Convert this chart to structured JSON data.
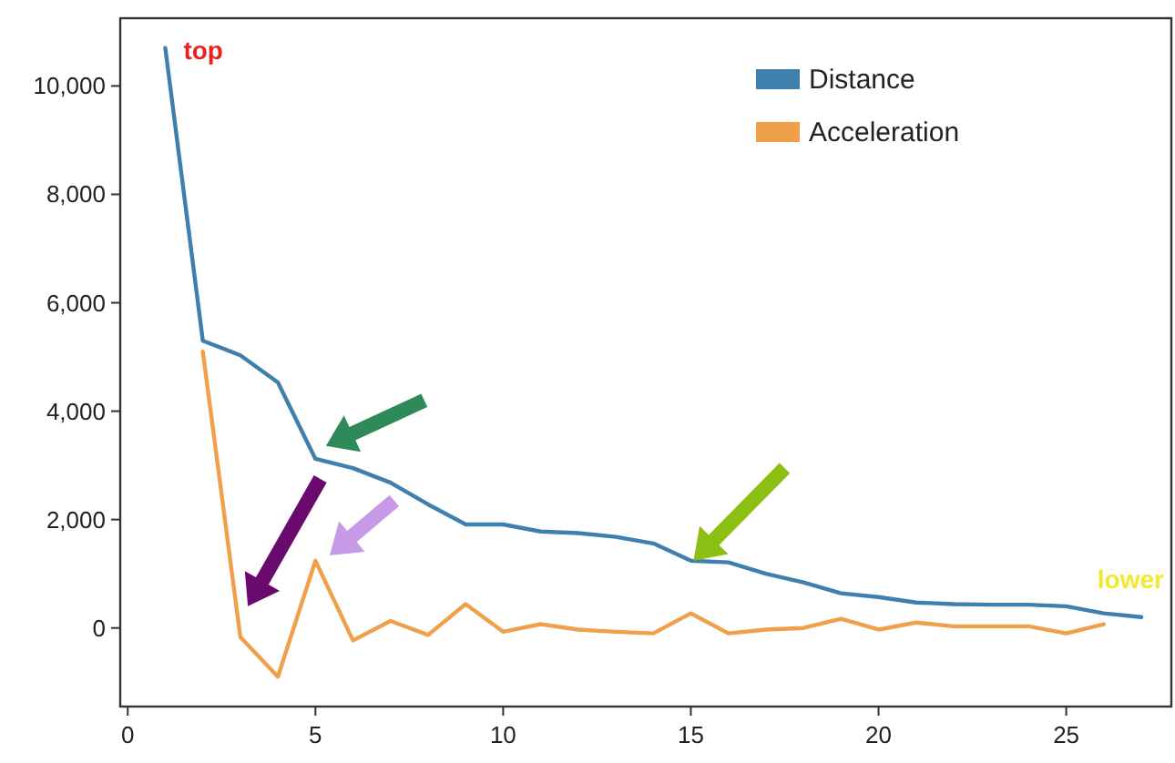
{
  "chart_data": {
    "type": "line",
    "x": [
      1,
      2,
      3,
      4,
      5,
      6,
      7,
      8,
      9,
      10,
      11,
      12,
      13,
      14,
      15,
      16,
      17,
      18,
      19,
      20,
      21,
      22,
      23,
      24,
      25,
      26,
      27
    ],
    "series": [
      {
        "name": "Distance",
        "color": "#3f7fae",
        "values": [
          10700,
          5300,
          5030,
          4530,
          3120,
          2950,
          2680,
          2280,
          1910,
          1910,
          1780,
          1750,
          1680,
          1560,
          1240,
          1210,
          1000,
          840,
          640,
          570,
          470,
          440,
          430,
          430,
          400,
          270,
          200
        ]
      },
      {
        "name": "Acceleration",
        "color": "#f0a04a",
        "x": [
          2,
          3,
          4,
          5,
          6,
          7,
          8,
          9,
          10,
          11,
          12,
          13,
          14,
          15,
          16,
          17,
          18,
          19,
          20,
          21,
          22,
          23,
          24,
          25,
          26
        ],
        "values": [
          5100,
          -170,
          -900,
          1240,
          -230,
          130,
          -130,
          440,
          -70,
          70,
          -30,
          -70,
          -100,
          270,
          -100,
          -30,
          0,
          170,
          -30,
          100,
          30,
          30,
          30,
          -100,
          70
        ]
      }
    ],
    "xlim": [
      -0.2,
      27.8
    ],
    "xticks": [
      0,
      5,
      10,
      15,
      20,
      25
    ],
    "ylim": [
      -1450,
      11250
    ],
    "yticks": [
      {
        "value": 0,
        "label": "0"
      },
      {
        "value": 2000,
        "label": "2,000"
      },
      {
        "value": 4000,
        "label": "4,000"
      },
      {
        "value": 6000,
        "label": "6,000"
      },
      {
        "value": 8000,
        "label": "8,000"
      },
      {
        "value": 10000,
        "label": "10,000"
      }
    ],
    "annotations": [
      {
        "text": "top",
        "x": 1,
        "y": 10700
      },
      {
        "text": "lower",
        "x": 26,
        "y": 270
      }
    ],
    "legend": "top right",
    "grid": false,
    "marker": "none",
    "line_style": "solid"
  }
}
